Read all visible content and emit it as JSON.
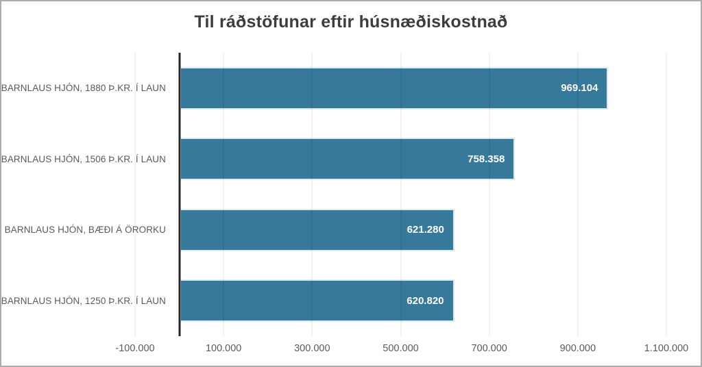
{
  "chart_data": {
    "type": "bar",
    "orientation": "horizontal",
    "title": "Til ráðstöfunar eftir húsnæðiskostnað",
    "categories": [
      "BARNLAUS HJÓN, 1880 Þ.KR. Í LAUN",
      "BARNLAUS HJÓN, 1506 Þ.KR. Í LAUN",
      "BARNLAUS HJÓN, BÆÐI Á ÖRORKU",
      "BARNLAUS HJÓN, 1250 Þ.KR. Í LAUN"
    ],
    "values": [
      969104,
      758358,
      621280,
      620820
    ],
    "value_labels": [
      "969.104",
      "758.358",
      "621.280",
      "620.820"
    ],
    "xlabel": "",
    "ylabel": "",
    "xlim": [
      -100000,
      1100000
    ],
    "x_ticks": [
      {
        "label": "-100.000",
        "value": -100000
      },
      {
        "label": "100.000",
        "value": 100000
      },
      {
        "label": "300.000",
        "value": 300000
      },
      {
        "label": "500.000",
        "value": 500000
      },
      {
        "label": "700.000",
        "value": 700000
      },
      {
        "label": "900.000",
        "value": 900000
      },
      {
        "label": "1.100.000",
        "value": 1100000
      }
    ],
    "grid": "vertical-gridlines-on",
    "legend": "none",
    "colors": {
      "bar_fill": "#37799a",
      "bar_border": "#dcebf2",
      "value_label": "#ffffff",
      "zero_axis_line": "#262626",
      "gridline_overlay": "rgba(0,0,0,0.10)",
      "title_text": "#3d3d3d",
      "category_text": "#595959",
      "tick_text": "#595959",
      "figure_border": "#ababab",
      "background": "#ffffff"
    }
  }
}
